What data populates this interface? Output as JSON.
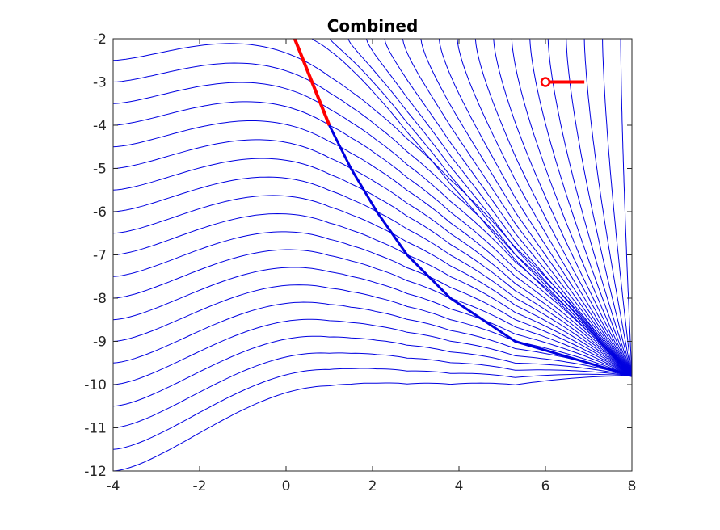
{
  "chart_data": {
    "type": "line",
    "title": "Combined",
    "xlabel": "",
    "ylabel": "",
    "xlim": [
      -4,
      8
    ],
    "ylim": [
      -12,
      -2
    ],
    "xticks": [
      -4,
      -2,
      0,
      2,
      4,
      6,
      8
    ],
    "yticks": [
      -2,
      -3,
      -4,
      -5,
      -6,
      -7,
      -8,
      -9,
      -10,
      -11,
      -12
    ],
    "xtick_labels": [
      "-4",
      "-2",
      "0",
      "2",
      "4",
      "6",
      "8"
    ],
    "ytick_labels": [
      "-2",
      "-3",
      "-4",
      "-5",
      "-6",
      "-7",
      "-8",
      "-9",
      "-10",
      "-11",
      "-12"
    ],
    "grid": false,
    "colors": {
      "streamlines": "#0000e0",
      "highlight": "#ff0000",
      "axes": "#262626"
    },
    "series": [
      {
        "kind": "streamlines",
        "x_start": -4,
        "x_end": 8,
        "y_starts": [
          -2.5,
          -3.0,
          -3.5,
          -4.0,
          -4.5,
          -5.0,
          -5.5,
          -6.0,
          -6.5,
          -7.0,
          -7.5,
          -8.0,
          -8.5,
          -9.0,
          -9.5,
          -10.0,
          -10.5,
          -11.0,
          -11.5,
          -12.0
        ],
        "attractor": [
          [
            0.2,
            -2.0
          ],
          [
            0.6,
            -3.0
          ],
          [
            1.0,
            -4.0
          ],
          [
            1.5,
            -5.0
          ],
          [
            2.1,
            -6.0
          ],
          [
            2.8,
            -7.0
          ],
          [
            3.8,
            -8.0
          ],
          [
            5.3,
            -9.0
          ],
          [
            8.0,
            -9.8
          ]
        ]
      },
      {
        "kind": "highlight-trajectory",
        "x": [
          0.2,
          0.4,
          0.6,
          0.8,
          1.0
        ],
        "y": [
          -2.0,
          -2.5,
          -3.0,
          -3.5,
          -4.0
        ]
      },
      {
        "kind": "marker-with-tail",
        "point": [
          6.0,
          -3.0
        ],
        "tail_end": [
          6.9,
          -3.0
        ]
      }
    ]
  }
}
